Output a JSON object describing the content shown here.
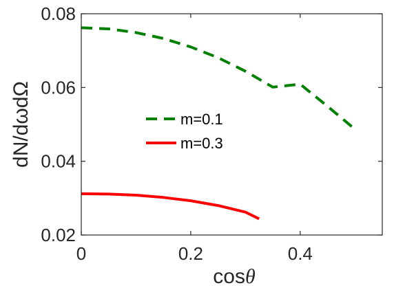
{
  "chart_data": {
    "type": "line",
    "xlabel_main": "cos",
    "xlabel_symbol": "θ",
    "ylabel": "dN/dωdΩ",
    "xlim": [
      0,
      0.55
    ],
    "ylim": [
      0.02,
      0.08
    ],
    "x_ticks": [
      "0",
      "0.2",
      "0.4"
    ],
    "y_ticks": [
      "0.02",
      "0.04",
      "0.06",
      "0.08"
    ],
    "grid": false,
    "legend_position": "center-left",
    "series": [
      {
        "name": "m=0.1",
        "color": "#008000",
        "style": "dashed",
        "x": [
          0,
          0.05,
          0.1,
          0.15,
          0.2,
          0.25,
          0.3,
          0.35,
          0.4,
          0.45,
          0.5
        ],
        "y": [
          0.0762,
          0.0759,
          0.0749,
          0.0733,
          0.071,
          0.0681,
          0.0644,
          0.0601,
          0.0609,
          0.0549,
          0.0487
        ]
      },
      {
        "name": "m=0.3",
        "color": "#ff0000",
        "style": "solid",
        "x": [
          0,
          0.05,
          0.1,
          0.15,
          0.2,
          0.25,
          0.3,
          0.325
        ],
        "y": [
          0.0312,
          0.0311,
          0.0308,
          0.0302,
          0.0293,
          0.028,
          0.0262,
          0.0244
        ]
      }
    ]
  }
}
